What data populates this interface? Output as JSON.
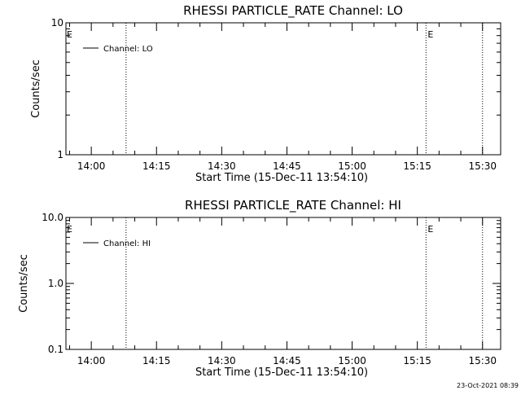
{
  "footer": {
    "timestamp": "23-Oct-2021 08:39"
  },
  "chart_data": [
    {
      "type": "line",
      "title": "RHESSI PARTICLE_RATE Channel: LO",
      "xlabel": "Start Time (15-Dec-11 13:54:10)",
      "ylabel": "Counts/sec",
      "yscale": "log",
      "ylim": [
        1,
        10
      ],
      "ytick_labels": [
        "1",
        "10"
      ],
      "ytick_values": [
        1,
        10
      ],
      "xlim": [
        "13:54:10",
        "15:34:10"
      ],
      "xtick_labels": [
        "14:00",
        "14:15",
        "14:30",
        "14:45",
        "15:00",
        "15:15",
        "15:30"
      ],
      "legend": {
        "position": "top-left",
        "entries": [
          "Channel: LO"
        ]
      },
      "series": [
        {
          "name": "Channel: LO",
          "x": [],
          "y": []
        }
      ],
      "vertical_markers": [
        {
          "time": "14:08:00",
          "style": "dotted",
          "label": ""
        },
        {
          "time": "15:17:00",
          "style": "dotted",
          "label": "E"
        },
        {
          "time": "15:30:00",
          "style": "dotted",
          "label": ""
        }
      ],
      "edge_label": "E",
      "grid": false
    },
    {
      "type": "line",
      "title": "RHESSI PARTICLE_RATE Channel: HI",
      "xlabel": "Start Time (15-Dec-11 13:54:10)",
      "ylabel": "Counts/sec",
      "yscale": "log",
      "ylim": [
        0.1,
        10
      ],
      "ytick_labels": [
        "0.1",
        "1.0",
        "10.0"
      ],
      "ytick_values": [
        0.1,
        1,
        10
      ],
      "xlim": [
        "13:54:10",
        "15:34:10"
      ],
      "xtick_labels": [
        "14:00",
        "14:15",
        "14:30",
        "14:45",
        "15:00",
        "15:15",
        "15:30"
      ],
      "legend": {
        "position": "top-left",
        "entries": [
          "Channel: HI"
        ]
      },
      "series": [
        {
          "name": "Channel: HI",
          "x": [],
          "y": []
        }
      ],
      "vertical_markers": [
        {
          "time": "14:08:00",
          "style": "dotted",
          "label": ""
        },
        {
          "time": "15:17:00",
          "style": "dotted",
          "label": "E"
        },
        {
          "time": "15:30:00",
          "style": "dotted",
          "label": ""
        }
      ],
      "edge_label": "E",
      "grid": false
    }
  ]
}
